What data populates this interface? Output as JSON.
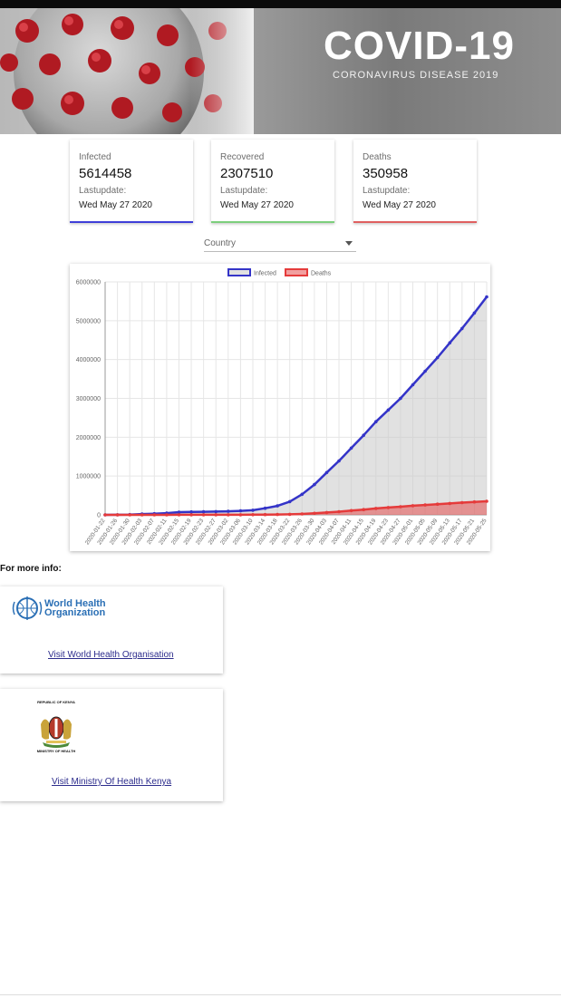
{
  "banner": {
    "title": "COVID-19",
    "subtitle": "CORONAVIRUS DISEASE 2019"
  },
  "cards": [
    {
      "label": "Infected",
      "value": "5614458",
      "update_label": "Lastupdate:",
      "date": "Wed May 27 2020",
      "color": "#3f3fd8"
    },
    {
      "label": "Recovered",
      "value": "2307510",
      "update_label": "Lastupdate:",
      "date": "Wed May 27 2020",
      "color": "#7ccf7c"
    },
    {
      "label": "Deaths",
      "value": "350958",
      "update_label": "Lastupdate:",
      "date": "Wed May 27 2020",
      "color": "#e06060"
    }
  ],
  "country_select": {
    "selected": "Country"
  },
  "chart_data": {
    "type": "line",
    "legend_placement": "top",
    "grid": true,
    "ylim": [
      0,
      6000000
    ],
    "y_ticks": [
      "0",
      "1000000",
      "2000000",
      "3000000",
      "4000000",
      "5000000",
      "6000000"
    ],
    "x_ticks": [
      "2020-01-22",
      "2020-01-26",
      "2020-01-30",
      "2020-02-03",
      "2020-02-07",
      "2020-02-11",
      "2020-02-15",
      "2020-02-19",
      "2020-02-23",
      "2020-02-27",
      "2020-03-02",
      "2020-03-06",
      "2020-03-10",
      "2020-03-14",
      "2020-03-18",
      "2020-03-22",
      "2020-03-26",
      "2020-03-30",
      "2020-04-03",
      "2020-04-07",
      "2020-04-11",
      "2020-04-15",
      "2020-04-19",
      "2020-04-23",
      "2020-04-27",
      "2020-05-01",
      "2020-05-05",
      "2020-05-09",
      "2020-05-13",
      "2020-05-17",
      "2020-05-21",
      "2020-05-25"
    ],
    "series": [
      {
        "name": "Infected",
        "color": "#3434c8",
        "fill": "rgba(200,200,200,0.55)",
        "values": [
          555,
          2000,
          8000,
          20000,
          31000,
          45000,
          69000,
          76000,
          79000,
          83000,
          90000,
          102000,
          120000,
          170000,
          230000,
          340000,
          530000,
          780000,
          1090000,
          1390000,
          1720000,
          2050000,
          2400000,
          2700000,
          3000000,
          3350000,
          3700000,
          4050000,
          4430000,
          4800000,
          5200000,
          5614458
        ]
      },
      {
        "name": "Deaths",
        "color": "#e53b3b",
        "fill": "rgba(229,80,80,0.55)",
        "values": [
          17,
          56,
          170,
          425,
          720,
          1100,
          1600,
          2200,
          2600,
          2800,
          3100,
          3500,
          4300,
          5900,
          8800,
          15000,
          24000,
          40000,
          60000,
          82000,
          110000,
          135000,
          165000,
          190000,
          210000,
          235000,
          255000,
          275000,
          295000,
          315000,
          335000,
          350958
        ]
      }
    ]
  },
  "more_info": {
    "heading": "For more info:",
    "who": {
      "logo_text_line1": "World Health",
      "logo_text_line2": "Organization",
      "link": "Visit World Health Organisation"
    },
    "moh": {
      "logo_top": "REPUBLIC OF KENYA",
      "logo_bottom": "MINISTRY OF HEALTH",
      "link": "Visit Ministry Of Health Kenya"
    }
  }
}
